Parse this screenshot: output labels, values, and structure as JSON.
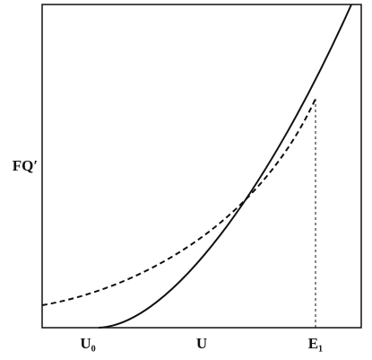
{
  "y_axis_label": "FQ′",
  "x_axis_labels": [
    "U₀",
    "U",
    "E₁"
  ]
}
